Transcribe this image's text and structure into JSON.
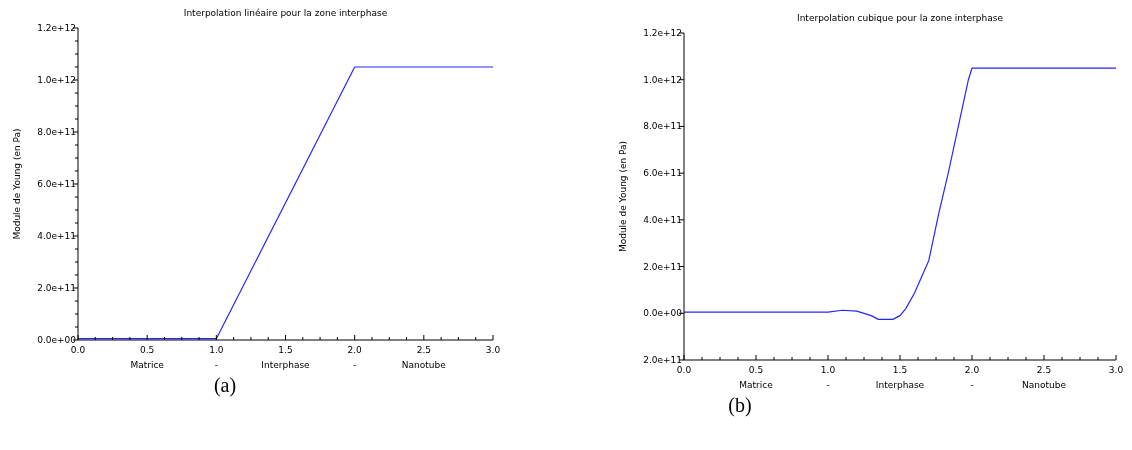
{
  "chart_data": [
    {
      "type": "line",
      "title": "Interpolation linéaire pour la zone interphase",
      "xlabel": "Matrice - Interphase - Nanotube",
      "ylabel": "Module de Young (en Pa)",
      "annotations": [
        "(a)"
      ],
      "x": [
        0,
        1,
        2,
        3
      ],
      "series": [
        {
          "color": "#2626ff",
          "values": [
            5000000000.0,
            5000000000.0,
            1050000000000.0,
            1050000000000.0
          ]
        }
      ],
      "xlim": [
        0,
        3
      ],
      "ylim": [
        0,
        1200000000000.0
      ],
      "xticks": [
        {
          "value": 0,
          "label": "0.0"
        },
        {
          "value": 0.125,
          "label": null
        },
        {
          "value": 0.25,
          "label": null
        },
        {
          "value": 0.375,
          "label": null
        },
        {
          "value": 0.5,
          "label": "0.5"
        },
        {
          "value": 0.625,
          "label": null
        },
        {
          "value": 0.75,
          "label": null
        },
        {
          "value": 0.875,
          "label": null
        },
        {
          "value": 1,
          "label": "1.0"
        },
        {
          "value": 1.125,
          "label": null
        },
        {
          "value": 1.25,
          "label": null
        },
        {
          "value": 1.375,
          "label": null
        },
        {
          "value": 1.5,
          "label": "1.5"
        },
        {
          "value": 1.625,
          "label": null
        },
        {
          "value": 1.75,
          "label": null
        },
        {
          "value": 1.875,
          "label": null
        },
        {
          "value": 2,
          "label": "2.0"
        },
        {
          "value": 2.125,
          "label": null
        },
        {
          "value": 2.25,
          "label": null
        },
        {
          "value": 2.375,
          "label": null
        },
        {
          "value": 2.5,
          "label": "2.5"
        },
        {
          "value": 2.625,
          "label": null
        },
        {
          "value": 2.75,
          "label": null
        },
        {
          "value": 2.875,
          "label": null
        },
        {
          "value": 3,
          "label": "3.0"
        }
      ],
      "yticks": [
        {
          "value": 0,
          "label": "0.0e+00"
        },
        {
          "value": 50000000000.0,
          "label": null
        },
        {
          "value": 100000000000.0,
          "label": null
        },
        {
          "value": 150000000000.0,
          "label": null
        },
        {
          "value": 200000000000.0,
          "label": "2.0e+11"
        },
        {
          "value": 250000000000.0,
          "label": null
        },
        {
          "value": 300000000000.0,
          "label": null
        },
        {
          "value": 350000000000.0,
          "label": null
        },
        {
          "value": 400000000000.0,
          "label": "4.0e+11"
        },
        {
          "value": 450000000000.0,
          "label": null
        },
        {
          "value": 500000000000.0,
          "label": null
        },
        {
          "value": 550000000000.0,
          "label": null
        },
        {
          "value": 600000000000.0,
          "label": "6.0e+11"
        },
        {
          "value": 650000000000.0,
          "label": null
        },
        {
          "value": 700000000000.0,
          "label": null
        },
        {
          "value": 750000000000.0,
          "label": null
        },
        {
          "value": 800000000000.0,
          "label": "8.0e+11"
        },
        {
          "value": 850000000000.0,
          "label": null
        },
        {
          "value": 900000000000.0,
          "label": null
        },
        {
          "value": 950000000000.0,
          "label": null
        },
        {
          "value": 1000000000000.0,
          "label": "1.0e+12"
        },
        {
          "value": 1050000000000.0,
          "label": null
        },
        {
          "value": 1100000000000.0,
          "label": null
        },
        {
          "value": 1150000000000.0,
          "label": null
        },
        {
          "value": 1200000000000.0,
          "label": "1.2e+12"
        }
      ],
      "grid": false
    },
    {
      "type": "line",
      "title": "Interpolation cubique pour la zone interphase",
      "xlabel": "Matrice - Interphase - Nanotube",
      "ylabel": "Module de Young (en Pa)",
      "annotations": [
        "(b)"
      ],
      "x": [
        0,
        1.0,
        1.1,
        1.2,
        1.3,
        1.35,
        1.45,
        1.5,
        1.54,
        1.6,
        1.7,
        1.77,
        1.835,
        1.905,
        1.975,
        2.0,
        3.0
      ],
      "series": [
        {
          "color": "#2626ff",
          "values": [
            5000000000.0,
            5000000000.0,
            13000000000.0,
            9000000000.0,
            -10000000000.0,
            -26000000000.0,
            -26000000000.0,
            -10000000000.0,
            20000000000.0,
            86000000000.0,
            226000000000.0,
            430000000000.0,
            600000000000.0,
            800000000000.0,
            1000000000000.0,
            1050000000000.0,
            1050000000000.0
          ]
        }
      ],
      "xlim": [
        0,
        3
      ],
      "ylim": [
        -200000000000.0,
        1200000000000.0
      ],
      "xticks": [
        {
          "value": 0,
          "label": "0.0"
        },
        {
          "value": 0.125,
          "label": null
        },
        {
          "value": 0.25,
          "label": null
        },
        {
          "value": 0.375,
          "label": null
        },
        {
          "value": 0.5,
          "label": "0.5"
        },
        {
          "value": 0.625,
          "label": null
        },
        {
          "value": 0.75,
          "label": null
        },
        {
          "value": 0.875,
          "label": null
        },
        {
          "value": 1,
          "label": "1.0"
        },
        {
          "value": 1.125,
          "label": null
        },
        {
          "value": 1.25,
          "label": null
        },
        {
          "value": 1.375,
          "label": null
        },
        {
          "value": 1.5,
          "label": "1.5"
        },
        {
          "value": 1.625,
          "label": null
        },
        {
          "value": 1.75,
          "label": null
        },
        {
          "value": 1.875,
          "label": null
        },
        {
          "value": 2,
          "label": "2.0"
        },
        {
          "value": 2.125,
          "label": null
        },
        {
          "value": 2.25,
          "label": null
        },
        {
          "value": 2.375,
          "label": null
        },
        {
          "value": 2.5,
          "label": "2.5"
        },
        {
          "value": 2.625,
          "label": null
        },
        {
          "value": 2.75,
          "label": null
        },
        {
          "value": 2.875,
          "label": null
        },
        {
          "value": 3,
          "label": "3.0"
        }
      ],
      "yticks": [
        {
          "value": -200000000000.0,
          "label": "2.0e+11"
        },
        {
          "value": 0,
          "label": "0.0e+00"
        },
        {
          "value": 200000000000.0,
          "label": "2.0e+11"
        },
        {
          "value": 400000000000.0,
          "label": "4.0e+11"
        },
        {
          "value": 600000000000.0,
          "label": "6.0e+11"
        },
        {
          "value": 800000000000.0,
          "label": "8.0e+11"
        },
        {
          "value": 1000000000000.0,
          "label": "1.0e+12"
        },
        {
          "value": 1200000000000.0,
          "label": "1.2e+12"
        }
      ],
      "grid": false
    }
  ]
}
